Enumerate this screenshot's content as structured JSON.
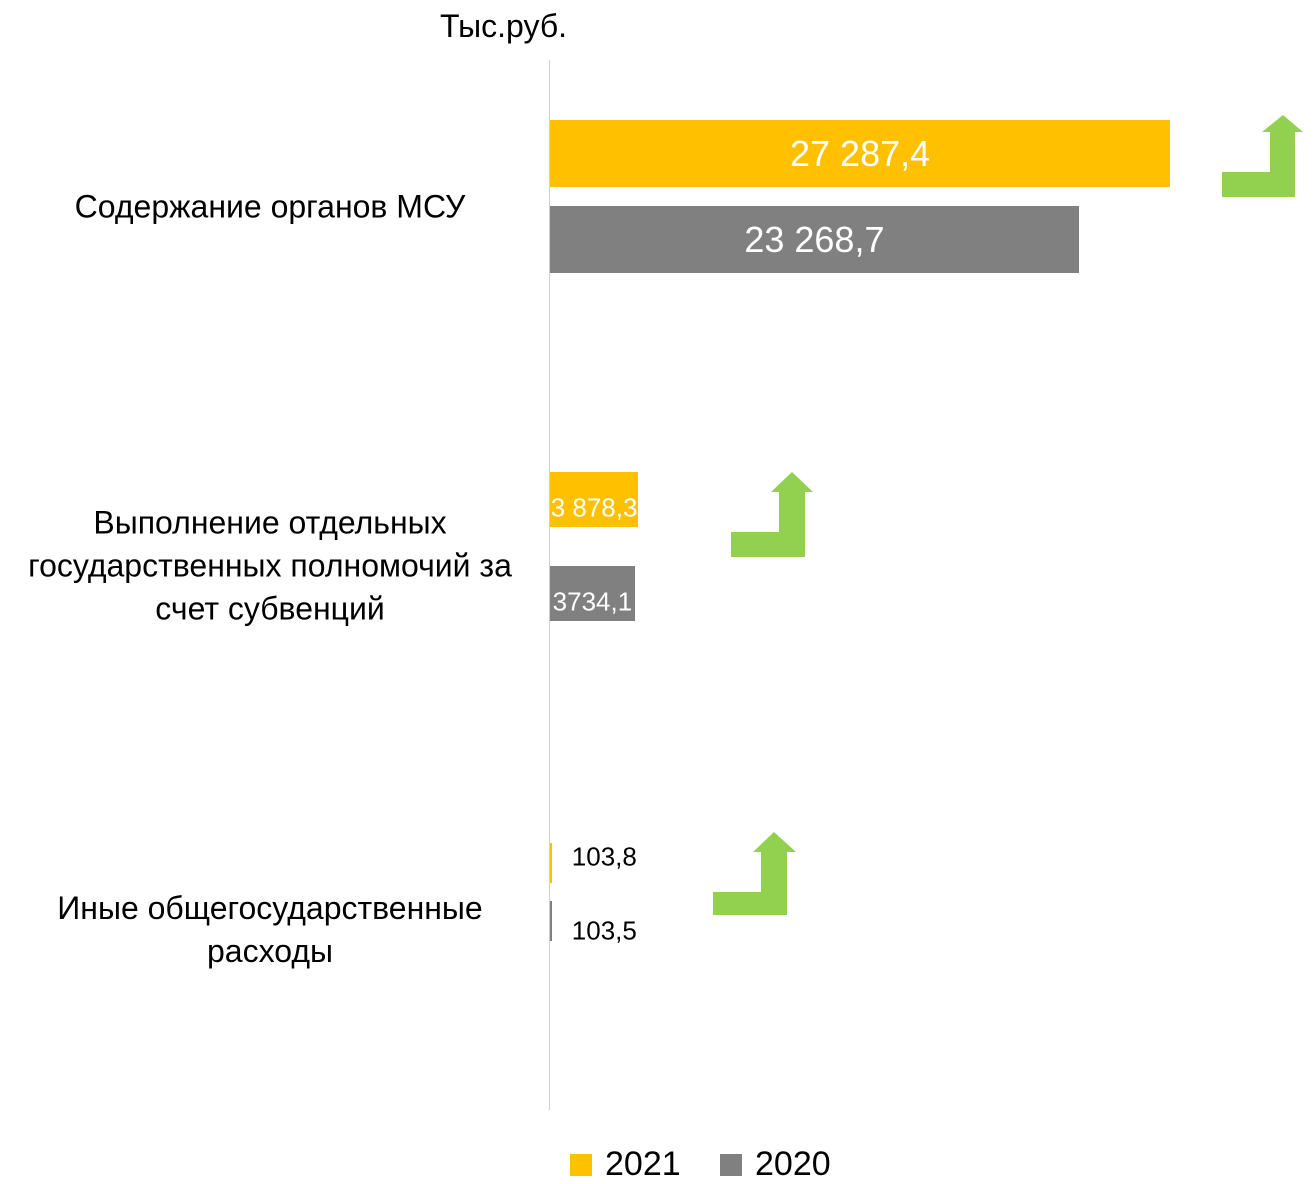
{
  "chart_data": {
    "type": "barh",
    "title": "Тыс.руб.",
    "categories": [
      "Содержание органов МСУ",
      "Выполнение отдельных государственных полномочий за счет субвенций",
      "Иные общегосударственные расходы"
    ],
    "series": [
      {
        "name": "2021",
        "color": "#ffc000",
        "values": [
          27287.4,
          3878.3,
          103.8
        ],
        "value_labels": [
          "27 287,4",
          "3 878,3",
          "103,8"
        ]
      },
      {
        "name": "2020",
        "color": "#808080",
        "values": [
          23268.7,
          3734.1,
          103.5
        ],
        "value_labels": [
          "23 268,7",
          "3734,1",
          "103,5"
        ]
      }
    ],
    "xlim": [
      0,
      27500
    ]
  }
}
